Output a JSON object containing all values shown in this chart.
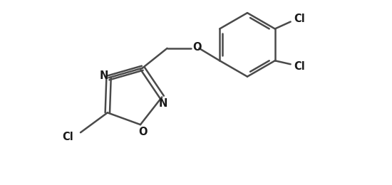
{
  "bg_color": "#ffffff",
  "line_color": "#4a4a4a",
  "line_width": 1.8,
  "text_color": "#1a1a1a",
  "font_size": 10.5,
  "xlim": [
    0.3,
    5.8
  ],
  "ylim": [
    0.3,
    2.7
  ]
}
